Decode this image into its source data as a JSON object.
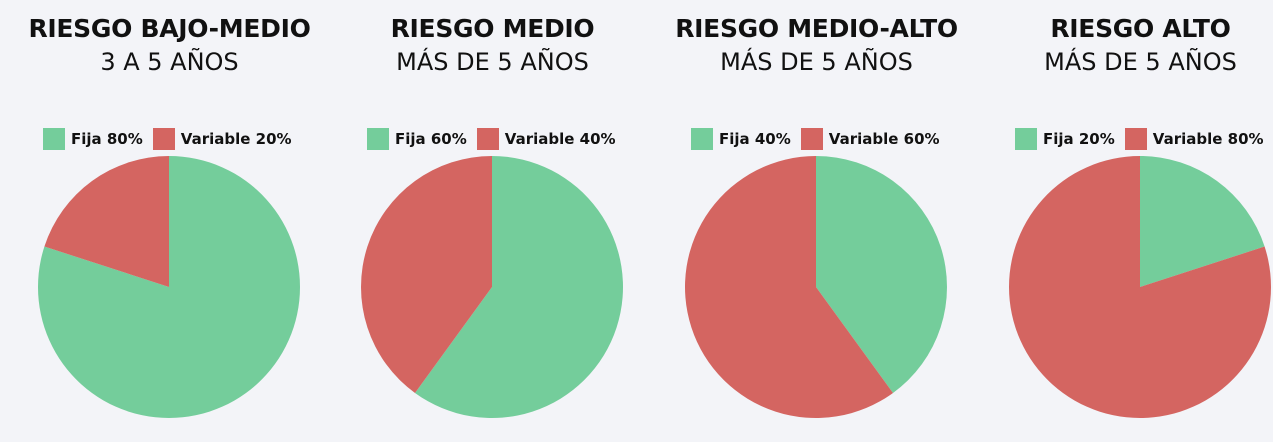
{
  "colors": {
    "fija": "#74cd9b",
    "variable": "#d46561",
    "background": "#f3f4f8"
  },
  "chart_data": [
    {
      "type": "pie",
      "title": "RIESGO BAJO-MEDIO",
      "subtitle": "3 A 5 AÑOS",
      "legend_position": "top",
      "slices": [
        {
          "label": "Fija 80%",
          "name": "Fija",
          "value": 80,
          "color": "#74cd9b"
        },
        {
          "label": "Variable 20%",
          "name": "Variable",
          "value": 20,
          "color": "#d46561"
        }
      ]
    },
    {
      "type": "pie",
      "title": "RIESGO MEDIO",
      "subtitle": "MÁS DE 5 AÑOS",
      "legend_position": "top",
      "slices": [
        {
          "label": "Fija 60%",
          "name": "Fija",
          "value": 60,
          "color": "#74cd9b"
        },
        {
          "label": "Variable 40%",
          "name": "Variable",
          "value": 40,
          "color": "#d46561"
        }
      ]
    },
    {
      "type": "pie",
      "title": "RIESGO MEDIO-ALTO",
      "subtitle": "MÁS DE 5 AÑOS",
      "legend_position": "top",
      "slices": [
        {
          "label": "Fija 40%",
          "name": "Fija",
          "value": 40,
          "color": "#74cd9b"
        },
        {
          "label": "Variable 60%",
          "name": "Variable",
          "value": 60,
          "color": "#d46561"
        }
      ]
    },
    {
      "type": "pie",
      "title": "RIESGO ALTO",
      "subtitle": "MÁS DE 5 AÑOS",
      "legend_position": "top",
      "slices": [
        {
          "label": "Fija 20%",
          "name": "Fija",
          "value": 20,
          "color": "#74cd9b"
        },
        {
          "label": "Variable 80%",
          "name": "Variable",
          "value": 80,
          "color": "#d46561"
        }
      ]
    }
  ]
}
